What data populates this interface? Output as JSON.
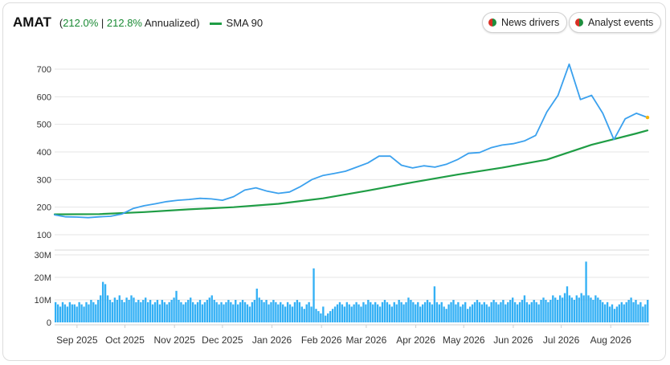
{
  "header": {
    "ticker": "AMAT",
    "perf_open": "(",
    "total_return": "212.0%",
    "separator": " | ",
    "annualized_return": "212.8%",
    "annualized_label": " Annualized)",
    "sma_label": "SMA 90"
  },
  "buttons": {
    "news_drivers": "News drivers",
    "analyst_events": "Analyst events"
  },
  "colors": {
    "price_line": "#3ba1ee",
    "sma_line": "#1f9d45",
    "volume_bar": "#33b0f5",
    "positive_text": "#1a8a34"
  },
  "chart_data": {
    "type": "line",
    "price_axis": {
      "ticks": [
        100,
        200,
        300,
        400,
        500,
        600,
        700
      ],
      "tick_labels": [
        "100",
        "200",
        "300",
        "400",
        "500",
        "600",
        "700"
      ]
    },
    "volume_axis": {
      "ticks": [
        0,
        10,
        20,
        30
      ],
      "tick_labels": [
        "0",
        "10M",
        "20M",
        "30M"
      ],
      "unit": "M"
    },
    "x_labels": [
      "Sep 2025",
      "Oct 2025",
      "Nov 2025",
      "Dec 2025",
      "Jan 2026",
      "Feb 2026",
      "Mar 2026",
      "Apr 2026",
      "May 2026",
      "Jun 2026",
      "Jul 2026",
      "Aug 2026"
    ],
    "series": [
      {
        "name": "AMAT",
        "points": [
          [
            "2025-08-18",
            172
          ],
          [
            "2025-08-25",
            165
          ],
          [
            "2025-09-01",
            164
          ],
          [
            "2025-09-08",
            162
          ],
          [
            "2025-09-15",
            165
          ],
          [
            "2025-09-22",
            167
          ],
          [
            "2025-09-29",
            175
          ],
          [
            "2025-10-06",
            195
          ],
          [
            "2025-10-13",
            205
          ],
          [
            "2025-10-20",
            212
          ],
          [
            "2025-10-27",
            220
          ],
          [
            "2025-11-03",
            225
          ],
          [
            "2025-11-10",
            228
          ],
          [
            "2025-11-17",
            232
          ],
          [
            "2025-11-24",
            230
          ],
          [
            "2025-12-01",
            225
          ],
          [
            "2025-12-08",
            238
          ],
          [
            "2025-12-15",
            262
          ],
          [
            "2025-12-22",
            270
          ],
          [
            "2025-12-29",
            258
          ],
          [
            "2026-01-05",
            250
          ],
          [
            "2026-01-12",
            255
          ],
          [
            "2026-01-19",
            275
          ],
          [
            "2026-01-26",
            300
          ],
          [
            "2026-02-02",
            315
          ],
          [
            "2026-02-09",
            322
          ],
          [
            "2026-02-16",
            330
          ],
          [
            "2026-02-23",
            345
          ],
          [
            "2026-03-02",
            360
          ],
          [
            "2026-03-09",
            385
          ],
          [
            "2026-03-16",
            385
          ],
          [
            "2026-03-23",
            352
          ],
          [
            "2026-03-30",
            342
          ],
          [
            "2026-04-06",
            350
          ],
          [
            "2026-04-13",
            345
          ],
          [
            "2026-04-20",
            355
          ],
          [
            "2026-04-27",
            372
          ],
          [
            "2026-05-04",
            395
          ],
          [
            "2026-05-11",
            398
          ],
          [
            "2026-05-18",
            415
          ],
          [
            "2026-05-25",
            425
          ],
          [
            "2026-06-01",
            430
          ],
          [
            "2026-06-08",
            440
          ],
          [
            "2026-06-15",
            460
          ],
          [
            "2026-06-22",
            545
          ],
          [
            "2026-06-29",
            605
          ],
          [
            "2026-07-06",
            718
          ],
          [
            "2026-07-13",
            590
          ],
          [
            "2026-07-20",
            605
          ],
          [
            "2026-07-27",
            540
          ],
          [
            "2026-08-03",
            445
          ],
          [
            "2026-08-10",
            520
          ],
          [
            "2026-08-17",
            540
          ],
          [
            "2026-08-24",
            525
          ]
        ]
      },
      {
        "name": "SMA 90",
        "points": [
          [
            "2025-08-18",
            174
          ],
          [
            "2025-09-15",
            175
          ],
          [
            "2025-10-13",
            182
          ],
          [
            "2025-11-10",
            192
          ],
          [
            "2025-12-08",
            200
          ],
          [
            "2026-01-05",
            212
          ],
          [
            "2026-02-02",
            232
          ],
          [
            "2026-03-02",
            260
          ],
          [
            "2026-03-30",
            290
          ],
          [
            "2026-04-27",
            318
          ],
          [
            "2026-05-25",
            343
          ],
          [
            "2026-06-22",
            372
          ],
          [
            "2026-07-20",
            426
          ],
          [
            "2026-08-17",
            467
          ],
          [
            "2026-08-24",
            478
          ]
        ]
      }
    ],
    "volume_millions": [
      9,
      8,
      7,
      9,
      8,
      7,
      9,
      8,
      8,
      7,
      9,
      8,
      7,
      9,
      8,
      10,
      9,
      8,
      10,
      12,
      18,
      17,
      12,
      10,
      9,
      11,
      10,
      12,
      10,
      9,
      11,
      10,
      12,
      11,
      9,
      10,
      9,
      10,
      11,
      9,
      10,
      8,
      9,
      10,
      8,
      10,
      9,
      8,
      9,
      10,
      11,
      14,
      10,
      9,
      8,
      9,
      10,
      11,
      9,
      8,
      9,
      10,
      8,
      9,
      10,
      11,
      12,
      10,
      9,
      8,
      9,
      8,
      9,
      10,
      9,
      8,
      10,
      8,
      9,
      10,
      9,
      8,
      7,
      9,
      10,
      15,
      11,
      10,
      9,
      10,
      8,
      9,
      10,
      9,
      8,
      9,
      8,
      7,
      9,
      8,
      7,
      9,
      10,
      9,
      7,
      6,
      8,
      9,
      7,
      24,
      6,
      5,
      4,
      7,
      3,
      4,
      5,
      6,
      7,
      8,
      9,
      8,
      7,
      9,
      8,
      7,
      8,
      9,
      8,
      7,
      9,
      8,
      10,
      9,
      8,
      9,
      8,
      7,
      9,
      10,
      9,
      8,
      7,
      9,
      8,
      10,
      9,
      8,
      9,
      11,
      10,
      9,
      8,
      9,
      7,
      8,
      9,
      10,
      9,
      8,
      16,
      9,
      8,
      9,
      7,
      6,
      8,
      9,
      10,
      8,
      9,
      7,
      8,
      9,
      6,
      7,
      8,
      9,
      10,
      9,
      8,
      9,
      8,
      7,
      9,
      10,
      9,
      8,
      9,
      10,
      8,
      9,
      10,
      11,
      9,
      8,
      9,
      10,
      12,
      9,
      8,
      9,
      10,
      9,
      8,
      10,
      11,
      10,
      9,
      10,
      12,
      11,
      10,
      12,
      11,
      13,
      16,
      12,
      11,
      10,
      12,
      11,
      13,
      12,
      27,
      12,
      11,
      10,
      12,
      11,
      10,
      9,
      8,
      9,
      7,
      8,
      6,
      7,
      8,
      9,
      8,
      9,
      10,
      11,
      9,
      10,
      8,
      9,
      7,
      8,
      10
    ],
    "grid": true,
    "legend": "top-left"
  }
}
